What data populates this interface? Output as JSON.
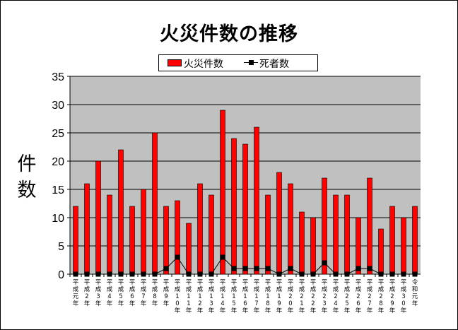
{
  "chart_data": {
    "type": "bar",
    "title": "火災件数の推移",
    "ylabel": "件数",
    "ylim": [
      0,
      35
    ],
    "yticks": [
      0,
      5,
      10,
      15,
      20,
      25,
      30,
      35
    ],
    "grid": true,
    "legend_position": "top",
    "categories": [
      "平成元年",
      "平成2年",
      "平成3年",
      "平成4年",
      "平成5年",
      "平成6年",
      "平成7年",
      "平成8年",
      "平成9年",
      "平成10年",
      "平成11年",
      "平成12年",
      "平成13年",
      "平成14年",
      "平成15年",
      "平成16年",
      "平成17年",
      "平成18年",
      "平成19年",
      "平成20年",
      "平成21年",
      "平成22年",
      "平成23年",
      "平成24年",
      "平成25年",
      "平成26年",
      "平成27年",
      "平成28年",
      "平成29年",
      "平成30年",
      "令和元年"
    ],
    "series": [
      {
        "name": "火災件数",
        "type": "bar",
        "color": "#ff0000",
        "values": [
          12,
          16,
          20,
          14,
          22,
          12,
          15,
          25,
          12,
          13,
          9,
          16,
          14,
          29,
          24,
          23,
          26,
          14,
          18,
          16,
          11,
          10,
          17,
          14,
          14,
          10,
          17,
          8,
          12,
          10,
          12
        ]
      },
      {
        "name": "死者数",
        "type": "line",
        "color": "#000000",
        "values": [
          0,
          0,
          0,
          0,
          0,
          0,
          0,
          0,
          1,
          3,
          0,
          0,
          0,
          3,
          1,
          1,
          1,
          1,
          0,
          1,
          0,
          0,
          2,
          0,
          0,
          1,
          1,
          0,
          0,
          0,
          0
        ]
      }
    ]
  }
}
